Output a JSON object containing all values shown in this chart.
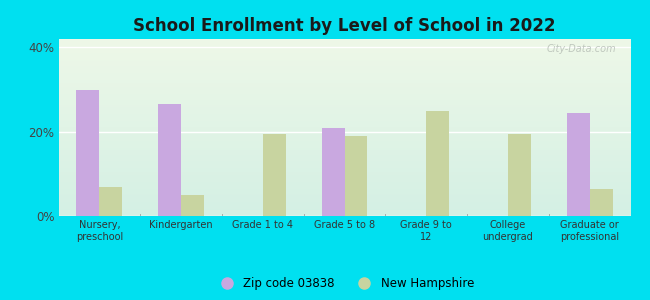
{
  "title": "School Enrollment by Level of School in 2022",
  "categories": [
    "Nursery,\npreschool",
    "Kindergarten",
    "Grade 1 to 4",
    "Grade 5 to 8",
    "Grade 9 to\n12",
    "College\nundergrad",
    "Graduate or\nprofessional"
  ],
  "zip_values": [
    30.0,
    26.5,
    0.0,
    21.0,
    0.0,
    0.0,
    24.5
  ],
  "nh_values": [
    7.0,
    5.0,
    19.5,
    19.0,
    25.0,
    19.5,
    6.5
  ],
  "zip_color": "#c9a8e0",
  "nh_color": "#c8d4a0",
  "background_outer": "#00e0f0",
  "background_inner_top": "#eef8e8",
  "background_inner_bottom": "#d4f0e4",
  "ylim": [
    0,
    42
  ],
  "yticks": [
    0,
    20,
    40
  ],
  "ytick_labels": [
    "0%",
    "20%",
    "40%"
  ],
  "legend_zip_label": "Zip code 03838",
  "legend_nh_label": "New Hampshire",
  "bar_width": 0.28,
  "title_fontsize": 12,
  "watermark": "City-Data.com"
}
